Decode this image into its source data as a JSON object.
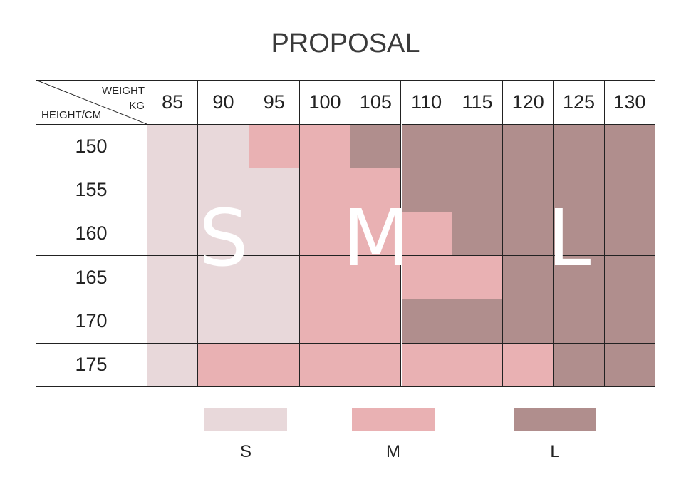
{
  "title": "PROPOSAL",
  "colors": {
    "S": "#e8d8da",
    "M": "#e9b1b3",
    "L": "#b08e8d",
    "grid_line": "#222222",
    "letter": "#ffffff"
  },
  "chart_data": {
    "type": "heatmap",
    "title": "PROPOSAL",
    "corner": {
      "column_axis_label": "WEIGHT",
      "column_axis_unit": "KG",
      "row_axis_label": "HEIGHT/CM"
    },
    "columns": [
      "85",
      "90",
      "95",
      "100",
      "105",
      "110",
      "115",
      "120",
      "125",
      "130"
    ],
    "rows": [
      "150",
      "155",
      "160",
      "165",
      "170",
      "175"
    ],
    "values": [
      [
        "S",
        "S",
        "M",
        "M",
        "L",
        "L",
        "L",
        "L",
        "L",
        "L"
      ],
      [
        "S",
        "S",
        "S",
        "M",
        "M",
        "L",
        "L",
        "L",
        "L",
        "L"
      ],
      [
        "S",
        "S",
        "S",
        "M",
        "M",
        "M",
        "L",
        "L",
        "L",
        "L"
      ],
      [
        "S",
        "S",
        "S",
        "M",
        "M",
        "M",
        "M",
        "L",
        "L",
        "L"
      ],
      [
        "S",
        "S",
        "S",
        "M",
        "M",
        "L",
        "L",
        "L",
        "L",
        "L"
      ],
      [
        "S",
        "M",
        "M",
        "M",
        "M",
        "M",
        "M",
        "M",
        "L",
        "L"
      ]
    ],
    "region_labels": [
      "S",
      "M",
      "L"
    ],
    "legend": [
      {
        "label": "S",
        "color": "#e8d8da"
      },
      {
        "label": "M",
        "color": "#e9b1b3"
      },
      {
        "label": "L",
        "color": "#b08e8d"
      }
    ],
    "legend_position": "bottom"
  }
}
